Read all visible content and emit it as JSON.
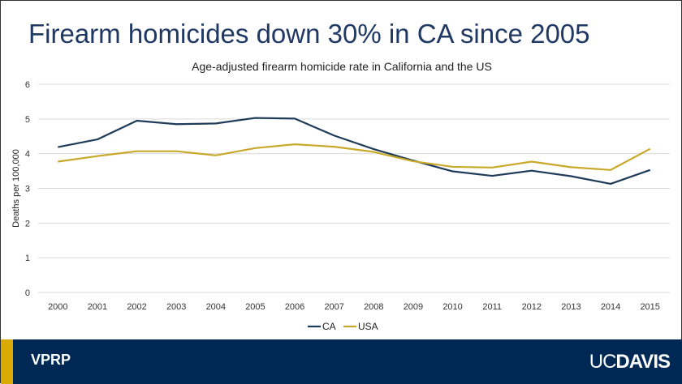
{
  "slide": {
    "title": "Firearm homicides down 30% in CA since 2005"
  },
  "footer": {
    "label": "VPRP",
    "logo_uc": "UC",
    "logo_davis": "DAVIS"
  },
  "colors": {
    "ca": "#1f3b5a",
    "usa": "#c9a92a",
    "footer": "#002855",
    "accent": "#DAAA00",
    "title": "#1f3864"
  },
  "chart_data": {
    "type": "line",
    "title": "Age-adjusted firearm homicide rate in California and the US",
    "xlabel": "",
    "ylabel": "Deaths per 100,000",
    "ylim": [
      0,
      6
    ],
    "yticks": [
      0,
      1,
      2,
      3,
      4,
      5,
      6
    ],
    "grid": true,
    "legend": "bottom",
    "categories": [
      "2000",
      "2001",
      "2002",
      "2003",
      "2004",
      "2005",
      "2006",
      "2007",
      "2008",
      "2009",
      "2010",
      "2011",
      "2012",
      "2013",
      "2014",
      "2015"
    ],
    "series": [
      {
        "name": "CA",
        "values": [
          4.19,
          4.41,
          4.95,
          4.85,
          4.87,
          5.03,
          5.01,
          4.52,
          4.13,
          3.8,
          3.49,
          3.36,
          3.51,
          3.35,
          3.13,
          3.53
        ]
      },
      {
        "name": "USA",
        "values": [
          3.77,
          3.93,
          4.07,
          4.07,
          3.95,
          4.16,
          4.27,
          4.2,
          4.05,
          3.78,
          3.62,
          3.6,
          3.77,
          3.61,
          3.53,
          4.14
        ]
      }
    ]
  }
}
